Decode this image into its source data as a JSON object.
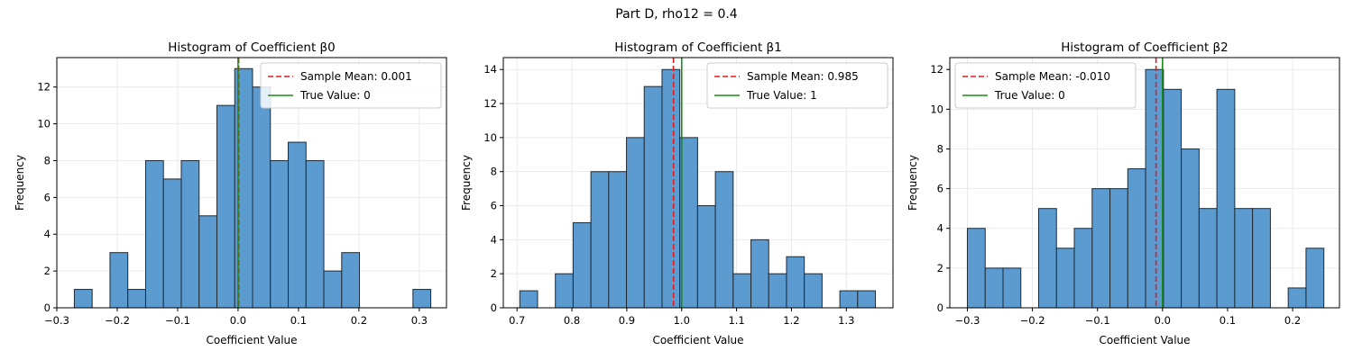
{
  "figure": {
    "suptitle": "Part D, rho12 = 0.4"
  },
  "colors": {
    "bar_fill": "#5b9bd0",
    "bar_edge": "#1f2a33",
    "mean_line": "#e41a1c",
    "true_line": "#1a8a1a",
    "grid": "#e6e6e6"
  },
  "chart_data": [
    {
      "type": "bar",
      "title": "Histogram of Coefficient β0",
      "xlabel": "Coefficient Value",
      "ylabel": "Frequency",
      "xlim": [
        -0.3,
        0.345
      ],
      "ylim": [
        0,
        13.6
      ],
      "xticks": [
        -0.3,
        -0.2,
        -0.1,
        0.0,
        0.1,
        0.2,
        0.3
      ],
      "xtick_labels": [
        "−0.3",
        "−0.2",
        "−0.1",
        "0.0",
        "0.1",
        "0.2",
        "0.3"
      ],
      "yticks": [
        0,
        2,
        4,
        6,
        8,
        10,
        12
      ],
      "grid": true,
      "bins": [
        {
          "x0": -0.271,
          "x1": -0.2415,
          "count": 1
        },
        {
          "x0": -0.2415,
          "x1": -0.212,
          "count": 0
        },
        {
          "x0": -0.212,
          "x1": -0.1825,
          "count": 3
        },
        {
          "x0": -0.1825,
          "x1": -0.153,
          "count": 1
        },
        {
          "x0": -0.153,
          "x1": -0.1235,
          "count": 8
        },
        {
          "x0": -0.1235,
          "x1": -0.094,
          "count": 7
        },
        {
          "x0": -0.094,
          "x1": -0.0645,
          "count": 8
        },
        {
          "x0": -0.0645,
          "x1": -0.035,
          "count": 5
        },
        {
          "x0": -0.035,
          "x1": -0.0055,
          "count": 11
        },
        {
          "x0": -0.0055,
          "x1": 0.024,
          "count": 13
        },
        {
          "x0": 0.024,
          "x1": 0.0535,
          "count": 12
        },
        {
          "x0": 0.0535,
          "x1": 0.083,
          "count": 8
        },
        {
          "x0": 0.083,
          "x1": 0.1125,
          "count": 9
        },
        {
          "x0": 0.1125,
          "x1": 0.142,
          "count": 8
        },
        {
          "x0": 0.142,
          "x1": 0.1715,
          "count": 2
        },
        {
          "x0": 0.1715,
          "x1": 0.201,
          "count": 3
        },
        {
          "x0": 0.201,
          "x1": 0.2305,
          "count": 0
        },
        {
          "x0": 0.2305,
          "x1": 0.26,
          "count": 0
        },
        {
          "x0": 0.26,
          "x1": 0.2895,
          "count": 0
        },
        {
          "x0": 0.2895,
          "x1": 0.319,
          "count": 1
        }
      ],
      "sample_mean": 0.001,
      "true_value": 0,
      "legend": [
        "Sample Mean: 0.001",
        "True Value: 0"
      ],
      "legend_position": "top-right"
    },
    {
      "type": "bar",
      "title": "Histogram of Coefficient β1",
      "xlabel": "Coefficient Value",
      "ylabel": "Frequency",
      "xlim": [
        0.675,
        1.385
      ],
      "ylim": [
        0,
        14.7
      ],
      "xticks": [
        0.7,
        0.8,
        0.9,
        1.0,
        1.1,
        1.2,
        1.3
      ],
      "xtick_labels": [
        "0.7",
        "0.8",
        "0.9",
        "1.0",
        "1.1",
        "1.2",
        "1.3"
      ],
      "yticks": [
        0,
        2,
        4,
        6,
        8,
        10,
        12,
        14
      ],
      "grid": true,
      "bins": [
        {
          "x0": 0.705,
          "x1": 0.7374,
          "count": 1
        },
        {
          "x0": 0.7374,
          "x1": 0.7698,
          "count": 0
        },
        {
          "x0": 0.7698,
          "x1": 0.8022,
          "count": 2
        },
        {
          "x0": 0.8022,
          "x1": 0.8346,
          "count": 5
        },
        {
          "x0": 0.8346,
          "x1": 0.867,
          "count": 8
        },
        {
          "x0": 0.867,
          "x1": 0.8994,
          "count": 8
        },
        {
          "x0": 0.8994,
          "x1": 0.9318,
          "count": 10
        },
        {
          "x0": 0.9318,
          "x1": 0.9642,
          "count": 13
        },
        {
          "x0": 0.9642,
          "x1": 0.9966,
          "count": 14
        },
        {
          "x0": 0.9966,
          "x1": 1.029,
          "count": 10
        },
        {
          "x0": 1.029,
          "x1": 1.0614,
          "count": 6
        },
        {
          "x0": 1.0614,
          "x1": 1.0938,
          "count": 8
        },
        {
          "x0": 1.0938,
          "x1": 1.1262,
          "count": 2
        },
        {
          "x0": 1.1262,
          "x1": 1.1586,
          "count": 4
        },
        {
          "x0": 1.1586,
          "x1": 1.191,
          "count": 2
        },
        {
          "x0": 1.191,
          "x1": 1.2234,
          "count": 3
        },
        {
          "x0": 1.2234,
          "x1": 1.2558,
          "count": 2
        },
        {
          "x0": 1.2558,
          "x1": 1.2882,
          "count": 0
        },
        {
          "x0": 1.2882,
          "x1": 1.3206,
          "count": 1
        },
        {
          "x0": 1.3206,
          "x1": 1.353,
          "count": 1
        }
      ],
      "sample_mean": 0.985,
      "true_value": 1,
      "legend": [
        "Sample Mean: 0.985",
        "True Value: 1"
      ],
      "legend_position": "top-right"
    },
    {
      "type": "bar",
      "title": "Histogram of Coefficient β2",
      "xlabel": "Coefficient Value",
      "ylabel": "Frequency",
      "xlim": [
        -0.327,
        0.272
      ],
      "ylim": [
        0,
        12.6
      ],
      "xticks": [
        -0.3,
        -0.2,
        -0.1,
        0.0,
        0.1,
        0.2
      ],
      "xtick_labels": [
        "−0.3",
        "−0.2",
        "−0.1",
        "0.0",
        "0.1",
        "0.2"
      ],
      "yticks": [
        0,
        2,
        4,
        6,
        8,
        10,
        12
      ],
      "grid": true,
      "bins": [
        {
          "x0": -0.3,
          "x1": -0.2726,
          "count": 4
        },
        {
          "x0": -0.2726,
          "x1": -0.2452,
          "count": 2
        },
        {
          "x0": -0.2452,
          "x1": -0.2178,
          "count": 2
        },
        {
          "x0": -0.2178,
          "x1": -0.1904,
          "count": 0
        },
        {
          "x0": -0.1904,
          "x1": -0.163,
          "count": 5
        },
        {
          "x0": -0.163,
          "x1": -0.1356,
          "count": 3
        },
        {
          "x0": -0.1356,
          "x1": -0.1082,
          "count": 4
        },
        {
          "x0": -0.1082,
          "x1": -0.0808,
          "count": 6
        },
        {
          "x0": -0.0808,
          "x1": -0.0534,
          "count": 6
        },
        {
          "x0": -0.0534,
          "x1": -0.026,
          "count": 7
        },
        {
          "x0": -0.026,
          "x1": 0.0014,
          "count": 12
        },
        {
          "x0": 0.0014,
          "x1": 0.0288,
          "count": 11
        },
        {
          "x0": 0.0288,
          "x1": 0.0562,
          "count": 8
        },
        {
          "x0": 0.0562,
          "x1": 0.0836,
          "count": 5
        },
        {
          "x0": 0.0836,
          "x1": 0.111,
          "count": 11
        },
        {
          "x0": 0.111,
          "x1": 0.1384,
          "count": 5
        },
        {
          "x0": 0.1384,
          "x1": 0.1658,
          "count": 5
        },
        {
          "x0": 0.1658,
          "x1": 0.1932,
          "count": 0
        },
        {
          "x0": 0.1932,
          "x1": 0.2206,
          "count": 1
        },
        {
          "x0": 0.2206,
          "x1": 0.248,
          "count": 3
        }
      ],
      "sample_mean": -0.01,
      "true_value": 0,
      "legend": [
        "Sample Mean: -0.010",
        "True Value: 0"
      ],
      "legend_position": "top-left"
    }
  ]
}
